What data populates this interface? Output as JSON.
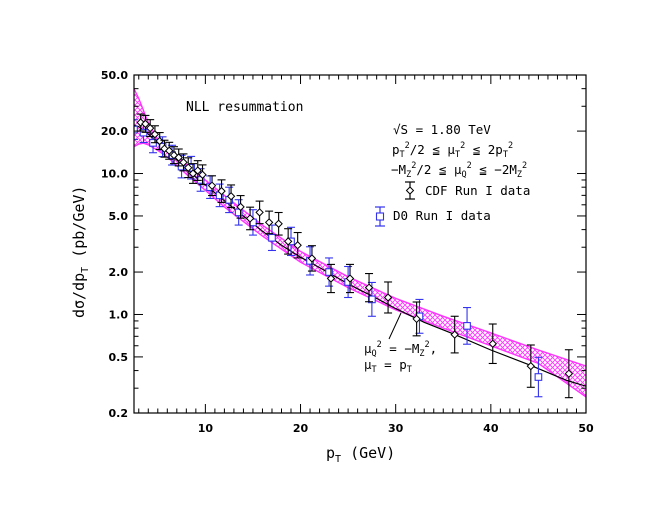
{
  "chart_data": {
    "type": "scatter",
    "title": "",
    "xlabel": {
      "main": "p",
      "sub": "T",
      "tail": " (GeV)"
    },
    "ylabel": {
      "pre": "dσ/dp",
      "sub": "T",
      "tail": " (pb/GeV)"
    },
    "xlim": [
      2.5,
      50
    ],
    "ylim": [
      0.2,
      50
    ],
    "yscale": "log",
    "x_ticks": [
      "10",
      "20",
      "30",
      "40",
      "50"
    ],
    "y_ticks": [
      "0.2",
      "0.5",
      "1.0",
      "2.0",
      "5.0",
      "10.0",
      "20.0",
      "50.0"
    ],
    "annotation_title": "NLL resummation",
    "energy_label": "√S =  1.80 TeV",
    "mu_t_range": {
      "a": "p",
      "b": "T",
      "c": "2",
      "d": "/2 ≦ ",
      "e": "μ",
      "f": "T",
      "g": "2",
      "h": " ≦ 2p",
      "i": "T",
      "j": "2"
    },
    "mu_q_range": {
      "a": "−M",
      "b": "Z",
      "c": "2",
      "d": "/2 ≦ ",
      "e": "μ",
      "f": "Q",
      "g": "2",
      "h": " ≦ −2M",
      "i": "Z",
      "j": "2"
    },
    "curve_label_1": {
      "a": "μ",
      "b": "Q",
      "c": "2",
      "d": " = −M",
      "e": "Z",
      "f": "2",
      "g": ","
    },
    "curve_label_2": {
      "a": "μ",
      "b": "T",
      "c": " = p",
      "d": "T"
    },
    "legend_position": "right, middle-upper",
    "colors": {
      "band": "#ff33ff",
      "d0": "#3333ee",
      "cdf": "#000000",
      "central": "#000000"
    },
    "central_curve": {
      "x": [
        2.5,
        3,
        4,
        5,
        6,
        7,
        8,
        9,
        10,
        12,
        14,
        16,
        18,
        20,
        22,
        24,
        26,
        28,
        30,
        33,
        36,
        40,
        44,
        48,
        50
      ],
      "y": [
        22,
        21.5,
        19,
        16.5,
        14.4,
        12.5,
        10.8,
        9.4,
        8.3,
        6.4,
        5.0,
        3.9,
        3.1,
        2.55,
        2.15,
        1.8,
        1.52,
        1.3,
        1.1,
        0.88,
        0.73,
        0.56,
        0.44,
        0.34,
        0.31
      ]
    },
    "band_upper": {
      "x": [
        2.5,
        3,
        3.5,
        4,
        5,
        6,
        7,
        8,
        10,
        12,
        16,
        20,
        25,
        30,
        35,
        40,
        45,
        50
      ],
      "y": [
        40,
        34,
        28,
        23,
        17.5,
        15,
        13.2,
        11.6,
        9.0,
        7.0,
        4.3,
        2.8,
        1.85,
        1.3,
        0.97,
        0.74,
        0.56,
        0.43
      ]
    },
    "band_lower": {
      "x": [
        2.5,
        3,
        3.5,
        4,
        5,
        6,
        7,
        8,
        10,
        12,
        16,
        20,
        25,
        30,
        35,
        40,
        45,
        50
      ],
      "y": [
        15.5,
        16.2,
        16.4,
        16.0,
        14.6,
        13.1,
        11.4,
        9.9,
        7.6,
        5.8,
        3.6,
        2.35,
        1.55,
        1.08,
        0.8,
        0.6,
        0.45,
        0.26
      ]
    },
    "series": [
      {
        "name": "CDF Run I data",
        "marker": "diamond",
        "x": [
          3.2,
          3.7,
          4.2,
          4.7,
          5.2,
          5.7,
          6.2,
          6.7,
          7.2,
          7.7,
          8.2,
          8.7,
          9.2,
          9.7,
          10.7,
          11.7,
          12.7,
          13.7,
          14.7,
          15.7,
          16.7,
          17.7,
          18.7,
          19.7,
          21.2,
          23.2,
          25.2,
          27.2,
          29.2,
          32.2,
          36.2,
          40.2,
          44.2,
          48.2
        ],
        "y": [
          23,
          22.5,
          21,
          19,
          17,
          15,
          14.5,
          13.5,
          13,
          12,
          11,
          10,
          10.5,
          9.8,
          8.2,
          7.5,
          6.9,
          5.8,
          4.8,
          5.3,
          4.5,
          4.4,
          3.3,
          3.1,
          2.5,
          1.8,
          1.8,
          1.55,
          1.32,
          0.93,
          0.72,
          0.62,
          0.43,
          0.38
        ],
        "err": [
          0.06,
          0.06,
          0.06,
          0.06,
          0.06,
          0.06,
          0.06,
          0.06,
          0.06,
          0.06,
          0.07,
          0.07,
          0.07,
          0.07,
          0.07,
          0.08,
          0.08,
          0.08,
          0.08,
          0.08,
          0.08,
          0.08,
          0.09,
          0.09,
          0.09,
          0.1,
          0.1,
          0.1,
          0.11,
          0.12,
          0.13,
          0.14,
          0.15,
          0.17
        ]
      },
      {
        "name": "D0 Run I data",
        "marker": "square",
        "x": [
          2.5,
          3.5,
          4.5,
          5.5,
          6.5,
          7.5,
          8.5,
          9.5,
          10.5,
          11.5,
          12.5,
          13.5,
          15,
          17,
          19,
          21,
          23,
          25,
          27.5,
          32.5,
          37.5,
          45
        ],
        "y": [
          20.5,
          19.5,
          16.5,
          15.5,
          13.5,
          11.2,
          11.0,
          9.0,
          8.0,
          7.0,
          6.5,
          5.3,
          4.5,
          3.5,
          3.3,
          2.4,
          2.0,
          1.7,
          1.28,
          0.97,
          0.83,
          0.36
        ],
        "err": [
          0.07,
          0.07,
          0.07,
          0.07,
          0.07,
          0.08,
          0.08,
          0.08,
          0.08,
          0.08,
          0.09,
          0.09,
          0.09,
          0.09,
          0.1,
          0.1,
          0.1,
          0.11,
          0.12,
          0.12,
          0.13,
          0.14
        ]
      }
    ]
  }
}
